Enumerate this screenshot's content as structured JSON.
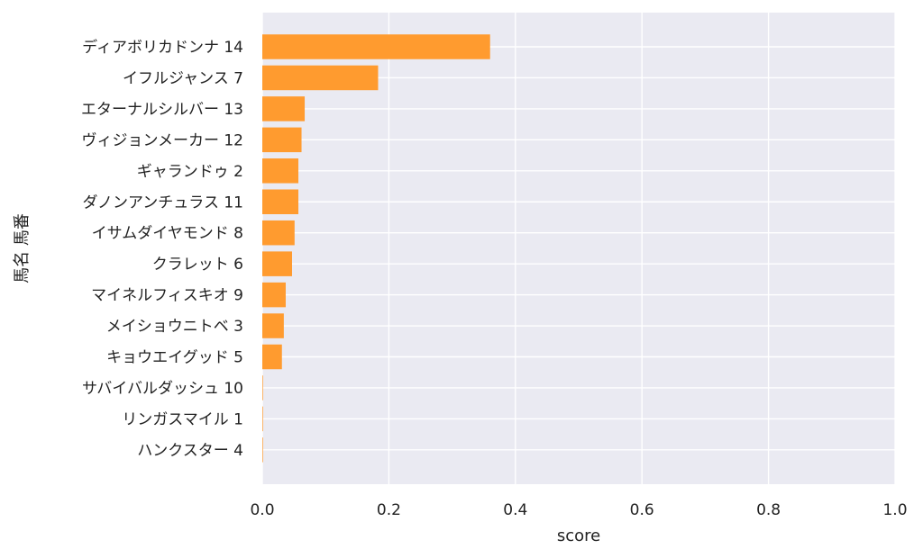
{
  "chart_data": {
    "type": "bar",
    "orientation": "horizontal",
    "title": "",
    "xlabel": "score",
    "ylabel": "馬名 馬番",
    "xlim": [
      0,
      1.0
    ],
    "x_ticks": [
      "0.0",
      "0.2",
      "0.4",
      "0.6",
      "0.8",
      "1.0"
    ],
    "grid": true,
    "colors": {
      "bar": "#ff9b2f",
      "plot_background": "#eaeaf2",
      "grid": "#ffffff"
    },
    "categories": [
      "ディアボリカドンナ 14",
      "イフルジャンス 7",
      "エターナルシルバー 13",
      "ヴィジョンメーカー 12",
      "ギャランドゥ 2",
      "ダノンアンチュラス 11",
      "イサムダイヤモンド 8",
      "クラレット 6",
      "マイネルフィスキオ 9",
      "メイショウニトベ 3",
      "キョウエイグッド 5",
      "サバイバルダッシュ 10",
      "リンガスマイル 1",
      "ハンクスター 4"
    ],
    "values": [
      0.36,
      0.183,
      0.067,
      0.062,
      0.057,
      0.057,
      0.051,
      0.047,
      0.037,
      0.034,
      0.031,
      0.001,
      0.001,
      0.001
    ]
  }
}
